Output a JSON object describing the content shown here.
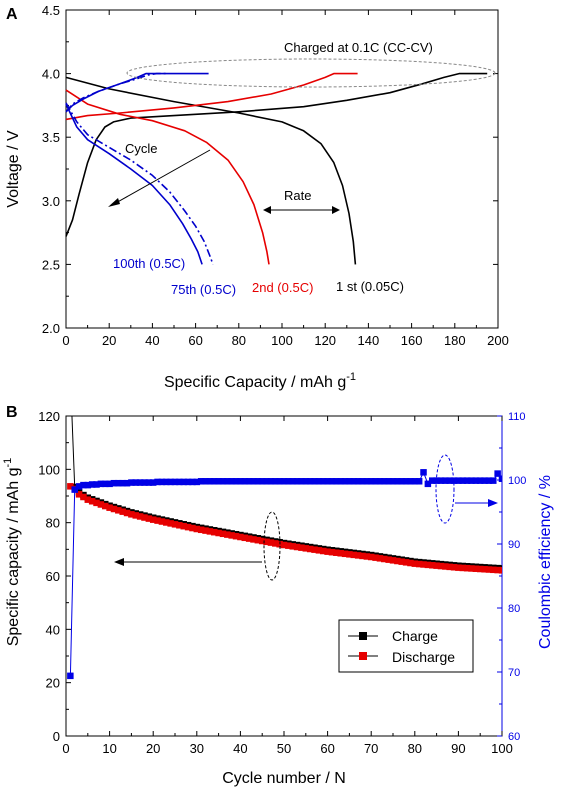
{
  "chart_data": [
    {
      "panel": "A",
      "type": "line",
      "xlabel": "Specific Capacity / mAh g",
      "xlabel_sup": "-1",
      "ylabel": "Voltage / V",
      "xlim": [
        0,
        200
      ],
      "ylim": [
        2.0,
        4.5
      ],
      "xticks": [
        "0",
        "20",
        "40",
        "60",
        "80",
        "100",
        "120",
        "140",
        "160",
        "180",
        "200"
      ],
      "yticks": [
        "2.0",
        "2.5",
        "3.0",
        "3.5",
        "4.0",
        "4.5"
      ],
      "annotations": {
        "charged": "Charged at 0.1C (CC-CV)",
        "cycle": "Cycle",
        "rate": "Rate"
      },
      "series": [
        {
          "name": "1 st (0.05C)",
          "color": "#000000",
          "style": "solid",
          "charge": [
            [
              0,
              2.72
            ],
            [
              3,
              2.85
            ],
            [
              6,
              3.05
            ],
            [
              10,
              3.3
            ],
            [
              14,
              3.48
            ],
            [
              18,
              3.58
            ],
            [
              22,
              3.62
            ],
            [
              30,
              3.65
            ],
            [
              50,
              3.67
            ],
            [
              80,
              3.7
            ],
            [
              110,
              3.74
            ],
            [
              130,
              3.79
            ],
            [
              150,
              3.85
            ],
            [
              165,
              3.92
            ],
            [
              175,
              3.97
            ],
            [
              182,
              4.0
            ],
            [
              195,
              4.0
            ]
          ],
          "discharge": [
            [
              0,
              3.97
            ],
            [
              20,
              3.88
            ],
            [
              50,
              3.78
            ],
            [
              80,
              3.69
            ],
            [
              100,
              3.62
            ],
            [
              110,
              3.55
            ],
            [
              118,
              3.45
            ],
            [
              124,
              3.3
            ],
            [
              128,
              3.12
            ],
            [
              131,
              2.9
            ],
            [
              133,
              2.68
            ],
            [
              134,
              2.5
            ]
          ]
        },
        {
          "name": "2nd (0.5C)",
          "color": "#e60000",
          "style": "solid",
          "charge": [
            [
              0,
              3.64
            ],
            [
              10,
              3.67
            ],
            [
              25,
              3.69
            ],
            [
              50,
              3.73
            ],
            [
              75,
              3.78
            ],
            [
              95,
              3.84
            ],
            [
              110,
              3.91
            ],
            [
              120,
              3.97
            ],
            [
              124,
              4.0
            ],
            [
              135,
              4.0
            ]
          ],
          "discharge": [
            [
              0,
              3.87
            ],
            [
              10,
              3.76
            ],
            [
              25,
              3.68
            ],
            [
              40,
              3.63
            ],
            [
              55,
              3.55
            ],
            [
              65,
              3.46
            ],
            [
              75,
              3.32
            ],
            [
              82,
              3.15
            ],
            [
              87,
              2.97
            ],
            [
              91,
              2.75
            ],
            [
              93,
              2.6
            ],
            [
              94,
              2.5
            ]
          ]
        },
        {
          "name": "75th (0.5C)",
          "color": "#0000cc",
          "style": "dashdot",
          "charge": [
            [
              0,
              3.7
            ],
            [
              3,
              3.76
            ],
            [
              8,
              3.81
            ],
            [
              15,
              3.86
            ],
            [
              25,
              3.92
            ],
            [
              33,
              3.96
            ],
            [
              38,
              3.99
            ],
            [
              42,
              4.0
            ],
            [
              47,
              4.0
            ]
          ],
          "discharge": [
            [
              0,
              3.77
            ],
            [
              5,
              3.62
            ],
            [
              10,
              3.52
            ],
            [
              20,
              3.42
            ],
            [
              30,
              3.32
            ],
            [
              40,
              3.2
            ],
            [
              48,
              3.07
            ],
            [
              55,
              2.92
            ],
            [
              60,
              2.8
            ],
            [
              64,
              2.68
            ],
            [
              67,
              2.55
            ],
            [
              68,
              2.5
            ]
          ]
        },
        {
          "name": "100th (0.5C)",
          "color": "#0000cc",
          "style": "solid",
          "charge": [
            [
              0,
              3.7
            ],
            [
              3,
              3.75
            ],
            [
              8,
              3.8
            ],
            [
              15,
              3.86
            ],
            [
              25,
              3.92
            ],
            [
              33,
              3.97
            ],
            [
              37,
              4.0
            ],
            [
              42,
              4.0
            ],
            [
              66,
              4.0
            ]
          ],
          "discharge": [
            [
              0,
              3.76
            ],
            [
              5,
              3.58
            ],
            [
              10,
              3.48
            ],
            [
              20,
              3.37
            ],
            [
              30,
              3.25
            ],
            [
              40,
              3.12
            ],
            [
              48,
              2.97
            ],
            [
              54,
              2.82
            ],
            [
              58,
              2.7
            ],
            [
              61,
              2.6
            ],
            [
              63,
              2.5
            ]
          ]
        }
      ]
    },
    {
      "panel": "B",
      "type": "scatter",
      "xlabel": "Cycle number / N",
      "ylabel": "Specific capacity / mAh g",
      "ylabel_sup": "-1",
      "y2label": "Coulombic efficiency / %",
      "xlim": [
        0,
        100
      ],
      "ylim": [
        0,
        120
      ],
      "y2lim": [
        60,
        110
      ],
      "xticks": [
        "0",
        "10",
        "20",
        "30",
        "40",
        "50",
        "60",
        "70",
        "80",
        "90",
        "100"
      ],
      "yticks": [
        "0",
        "20",
        "40",
        "60",
        "80",
        "100",
        "120"
      ],
      "y2ticks": [
        "60",
        "70",
        "80",
        "90",
        "100",
        "110"
      ],
      "legend": {
        "placement": "lower-right",
        "entries": [
          "Charge",
          "Discharge"
        ]
      },
      "series": [
        {
          "name": "Charge",
          "color": "#000000",
          "marker": "square",
          "axis": "left"
        },
        {
          "name": "Discharge",
          "color": "#e60000",
          "marker": "square",
          "axis": "left"
        },
        {
          "name": "Coulombic efficiency",
          "color": "#0000e6",
          "marker": "square",
          "axis": "right"
        }
      ],
      "cycles": {
        "first_charge": 135,
        "capacity_anchors": [
          [
            1,
            94
          ],
          [
            2,
            93
          ],
          [
            3,
            91
          ],
          [
            5,
            89
          ],
          [
            10,
            86
          ],
          [
            15,
            83.5
          ],
          [
            20,
            81.5
          ],
          [
            30,
            78
          ],
          [
            40,
            75
          ],
          [
            50,
            72
          ],
          [
            60,
            69.5
          ],
          [
            70,
            67.5
          ],
          [
            80,
            65
          ],
          [
            90,
            63.5
          ],
          [
            100,
            62.5
          ]
        ],
        "efficiency": [
          69.4,
          98.5,
          99.0,
          99.2,
          99.2,
          99.3,
          99.3,
          99.4,
          99.4,
          99.4,
          99.5,
          99.5,
          99.5,
          99.5,
          99.6,
          99.6,
          99.6,
          99.6,
          99.6,
          99.6,
          99.7,
          99.7,
          99.7,
          99.7,
          99.7,
          99.7,
          99.7,
          99.7,
          99.7,
          99.7,
          99.8,
          99.8,
          99.8,
          99.8,
          99.8,
          99.8,
          99.8,
          99.8,
          99.8,
          99.8,
          99.8,
          99.8,
          99.8,
          99.8,
          99.8,
          99.8,
          99.8,
          99.8,
          99.8,
          99.8,
          99.8,
          99.8,
          99.8,
          99.8,
          99.8,
          99.8,
          99.8,
          99.8,
          99.8,
          99.8,
          99.8,
          99.8,
          99.8,
          99.8,
          99.8,
          99.8,
          99.8,
          99.8,
          99.8,
          99.8,
          99.8,
          99.8,
          99.8,
          99.8,
          99.8,
          99.8,
          99.8,
          99.8,
          99.8,
          99.8,
          99.8,
          101.2,
          99.4,
          99.9,
          99.9,
          99.9,
          99.9,
          99.9,
          99.9,
          99.9,
          99.9,
          99.9,
          99.9,
          99.9,
          99.9,
          99.9,
          99.9,
          99.9,
          101.0,
          100.2
        ]
      }
    }
  ]
}
